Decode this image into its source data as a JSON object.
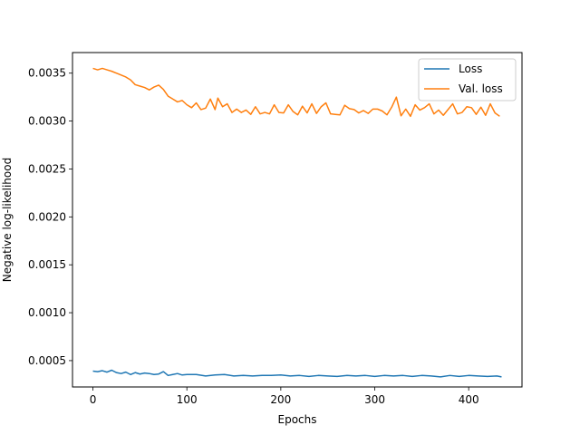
{
  "chart_data": {
    "type": "line",
    "title": "",
    "xlabel": "Epochs",
    "ylabel": "Negative log-likelihood",
    "xlim": [
      -21.75,
      456.75
    ],
    "ylim": [
      0.000225,
      0.003715
    ],
    "xticks": [
      0,
      100,
      200,
      300,
      400
    ],
    "xtick_labels": [
      "0",
      "100",
      "200",
      "300",
      "400"
    ],
    "yticks": [
      0.0005,
      0.001,
      0.0015,
      0.002,
      0.0025,
      0.003,
      0.0035
    ],
    "ytick_labels": [
      "0.0005",
      "0.0010",
      "0.0015",
      "0.0020",
      "0.0025",
      "0.0030",
      "0.0035"
    ],
    "grid": false,
    "legend_position": "top-right",
    "series": [
      {
        "name": "Loss",
        "color": "#1f77b4",
        "points": [
          [
            0,
            0.00039
          ],
          [
            5,
            0.000385
          ],
          [
            10,
            0.000395
          ],
          [
            15,
            0.00038
          ],
          [
            20,
            0.0004
          ],
          [
            25,
            0.000375
          ],
          [
            30,
            0.000365
          ],
          [
            35,
            0.00038
          ],
          [
            40,
            0.000355
          ],
          [
            45,
            0.000375
          ],
          [
            50,
            0.00036
          ],
          [
            55,
            0.00037
          ],
          [
            60,
            0.000365
          ],
          [
            65,
            0.000355
          ],
          [
            70,
            0.00036
          ],
          [
            75,
            0.000385
          ],
          [
            80,
            0.000345
          ],
          [
            85,
            0.000355
          ],
          [
            90,
            0.000365
          ],
          [
            95,
            0.00035
          ],
          [
            100,
            0.000355
          ],
          [
            110,
            0.000355
          ],
          [
            120,
            0.00034
          ],
          [
            130,
            0.00035
          ],
          [
            140,
            0.000355
          ],
          [
            150,
            0.00034
          ],
          [
            160,
            0.000345
          ],
          [
            170,
            0.00034
          ],
          [
            180,
            0.000345
          ],
          [
            190,
            0.000345
          ],
          [
            200,
            0.00035
          ],
          [
            210,
            0.00034
          ],
          [
            220,
            0.000345
          ],
          [
            230,
            0.000335
          ],
          [
            240,
            0.000345
          ],
          [
            250,
            0.00034
          ],
          [
            260,
            0.000335
          ],
          [
            270,
            0.000345
          ],
          [
            280,
            0.00034
          ],
          [
            290,
            0.000345
          ],
          [
            300,
            0.000335
          ],
          [
            310,
            0.000345
          ],
          [
            320,
            0.00034
          ],
          [
            330,
            0.000345
          ],
          [
            340,
            0.000335
          ],
          [
            350,
            0.000345
          ],
          [
            360,
            0.00034
          ],
          [
            370,
            0.00033
          ],
          [
            380,
            0.000345
          ],
          [
            390,
            0.000335
          ],
          [
            400,
            0.000345
          ],
          [
            410,
            0.00034
          ],
          [
            420,
            0.000335
          ],
          [
            430,
            0.00034
          ],
          [
            435,
            0.00033
          ]
        ]
      },
      {
        "name": "Val. loss",
        "color": "#ff7f0e",
        "points": [
          [
            0,
            0.00355
          ],
          [
            5,
            0.003535
          ],
          [
            10,
            0.00355
          ],
          [
            15,
            0.003535
          ],
          [
            20,
            0.00352
          ],
          [
            25,
            0.0035
          ],
          [
            30,
            0.00348
          ],
          [
            35,
            0.00346
          ],
          [
            40,
            0.00343
          ],
          [
            45,
            0.00338
          ],
          [
            50,
            0.003365
          ],
          [
            55,
            0.00335
          ],
          [
            60,
            0.003325
          ],
          [
            65,
            0.003355
          ],
          [
            70,
            0.003375
          ],
          [
            75,
            0.00333
          ],
          [
            80,
            0.00326
          ],
          [
            85,
            0.00323
          ],
          [
            90,
            0.0032
          ],
          [
            95,
            0.003215
          ],
          [
            100,
            0.00317
          ],
          [
            105,
            0.00314
          ],
          [
            110,
            0.00319
          ],
          [
            115,
            0.00312
          ],
          [
            120,
            0.003135
          ],
          [
            125,
            0.00323
          ],
          [
            130,
            0.00312
          ],
          [
            133,
            0.00324
          ],
          [
            138,
            0.00315
          ],
          [
            143,
            0.00318
          ],
          [
            148,
            0.00309
          ],
          [
            153,
            0.003125
          ],
          [
            158,
            0.00309
          ],
          [
            163,
            0.003115
          ],
          [
            168,
            0.00307
          ],
          [
            173,
            0.00315
          ],
          [
            178,
            0.003075
          ],
          [
            183,
            0.00309
          ],
          [
            188,
            0.003075
          ],
          [
            193,
            0.00317
          ],
          [
            198,
            0.00309
          ],
          [
            203,
            0.003085
          ],
          [
            208,
            0.00317
          ],
          [
            213,
            0.0031
          ],
          [
            218,
            0.003065
          ],
          [
            223,
            0.003155
          ],
          [
            228,
            0.003085
          ],
          [
            233,
            0.00318
          ],
          [
            238,
            0.00308
          ],
          [
            243,
            0.00315
          ],
          [
            248,
            0.00319
          ],
          [
            253,
            0.003075
          ],
          [
            258,
            0.00307
          ],
          [
            263,
            0.003065
          ],
          [
            268,
            0.003165
          ],
          [
            273,
            0.00313
          ],
          [
            278,
            0.00312
          ],
          [
            283,
            0.003085
          ],
          [
            288,
            0.00311
          ],
          [
            293,
            0.00308
          ],
          [
            298,
            0.003125
          ],
          [
            303,
            0.003125
          ],
          [
            308,
            0.003105
          ],
          [
            313,
            0.003065
          ],
          [
            318,
            0.003145
          ],
          [
            323,
            0.00325
          ],
          [
            328,
            0.003055
          ],
          [
            333,
            0.003125
          ],
          [
            338,
            0.00305
          ],
          [
            343,
            0.00317
          ],
          [
            348,
            0.003115
          ],
          [
            353,
            0.00314
          ],
          [
            358,
            0.00318
          ],
          [
            363,
            0.003075
          ],
          [
            368,
            0.003115
          ],
          [
            373,
            0.00306
          ],
          [
            378,
            0.00312
          ],
          [
            383,
            0.00318
          ],
          [
            388,
            0.003075
          ],
          [
            393,
            0.00309
          ],
          [
            398,
            0.00315
          ],
          [
            403,
            0.00314
          ],
          [
            408,
            0.00307
          ],
          [
            413,
            0.003145
          ],
          [
            418,
            0.00306
          ],
          [
            423,
            0.00318
          ],
          [
            428,
            0.003085
          ],
          [
            433,
            0.00305
          ]
        ]
      }
    ]
  }
}
